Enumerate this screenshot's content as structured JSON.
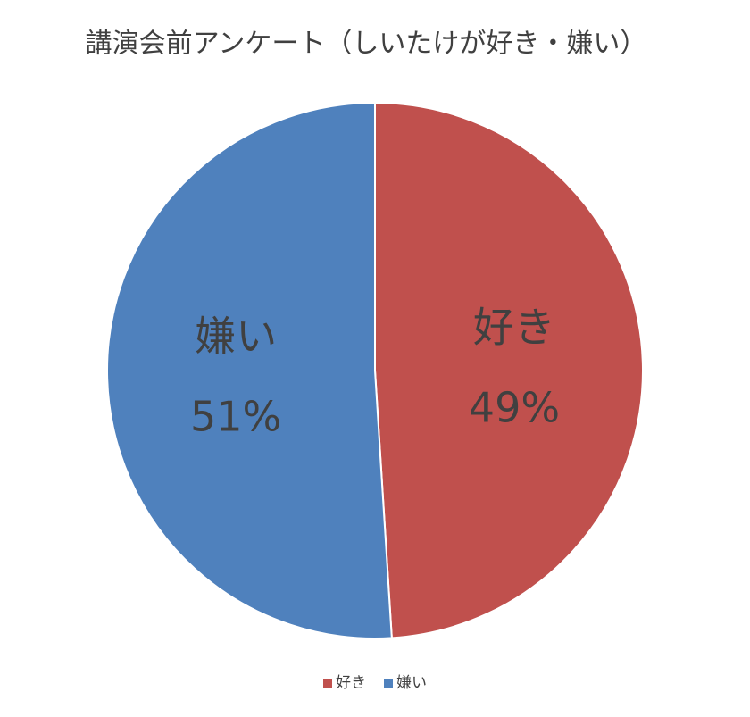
{
  "chart_data": {
    "type": "pie",
    "title": "講演会前アンケート（しいたけが好き・嫌い）",
    "categories": [
      "好き",
      "嫌い"
    ],
    "values": [
      49,
      51
    ],
    "value_labels": [
      "49%",
      "51%"
    ],
    "colors": [
      "#c0504d",
      "#4f81bd"
    ],
    "legend": "bottom"
  }
}
